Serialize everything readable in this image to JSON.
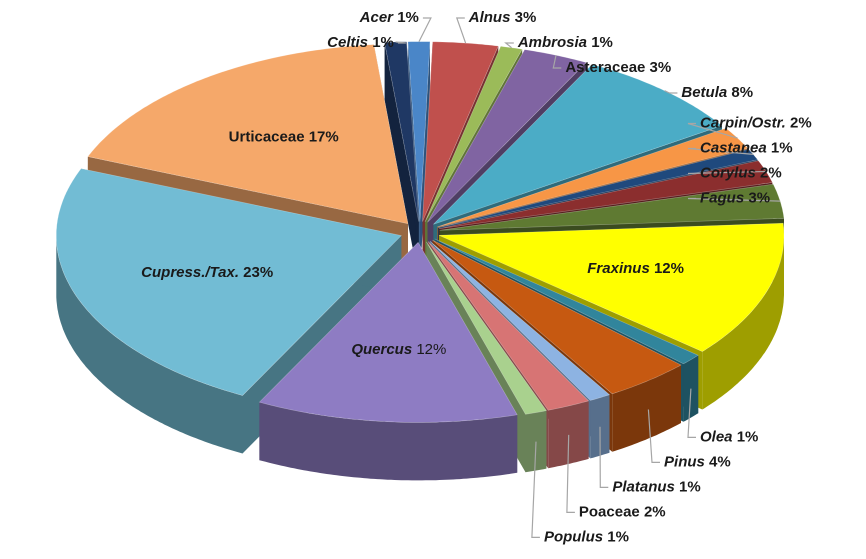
{
  "chart_data": {
    "type": "pie3d",
    "categories": [
      "Acer",
      "Alnus",
      "Ambrosia",
      "Asteraceae",
      "Betula",
      "Carpin/Ostr.",
      "Castanea",
      "Corylus",
      "Fagus",
      "Fraxinus",
      "Olea",
      "Pinus",
      "Platanus",
      "Poaceae",
      "Populus",
      "Quercus",
      "Cupress./Tax.",
      "Urticaceae",
      "Celtis"
    ],
    "values": [
      1,
      3,
      1,
      3,
      8,
      2,
      1,
      2,
      3,
      12,
      1,
      4,
      1,
      2,
      1,
      12,
      23,
      17,
      1
    ],
    "value_labels": [
      "1%",
      "3%",
      "1%",
      "3%",
      "8%",
      "2%",
      "1%",
      "2%",
      "3%",
      "12%",
      "1%",
      "4%",
      "1%",
      "2%",
      "1%",
      "12%",
      "23%",
      "17%",
      "1%"
    ],
    "colors": [
      "#4a86c8",
      "#c0504d",
      "#9bbb59",
      "#8064a2",
      "#4bacc6",
      "#f79646",
      "#1f497d",
      "#8b2e2e",
      "#5f7a32",
      "#ffff00",
      "#31859c",
      "#c65911",
      "#8db3e2",
      "#d77474",
      "#a9d18e",
      "#8e7cc3",
      "#72bcd4",
      "#f5a86a",
      "#1f3864"
    ]
  }
}
